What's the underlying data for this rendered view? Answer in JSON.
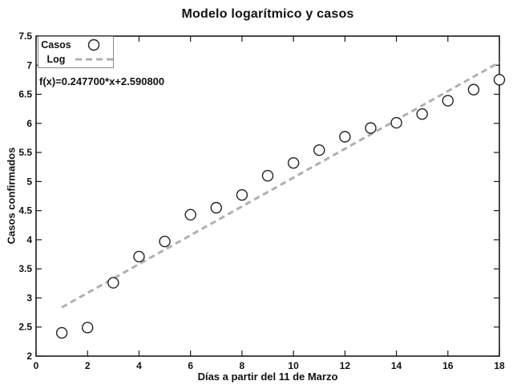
{
  "title": "Modelo logarítmico y casos",
  "colors": {
    "axis": "#1a1a1a",
    "text": "#111111",
    "marker_stroke": "#222222",
    "marker_fill": "#ffffff",
    "fit_line": "#b0b0b0",
    "legend_border": "#8a8a8a",
    "background": "#ffffff"
  },
  "chart_data": {
    "type": "scatter",
    "title": "Modelo logarítmico y casos",
    "xlabel": "Días a partir del 11 de Marzo",
    "ylabel": "Casos confirmados",
    "xlim": [
      0,
      18
    ],
    "ylim": [
      2,
      7.5
    ],
    "x_ticks": [
      0,
      2,
      4,
      6,
      8,
      10,
      12,
      14,
      16,
      18
    ],
    "y_ticks": [
      2,
      2.5,
      3,
      3.5,
      4,
      4.5,
      5,
      5.5,
      6,
      6.5,
      7,
      7.5
    ],
    "grid": false,
    "legend_position": "top-left-inside",
    "annotation": "f(x)=0.247700*x+2.590800",
    "series": [
      {
        "name": "Casos",
        "type": "scatter",
        "marker": "open-circle",
        "color": "#222222",
        "x": [
          1,
          2,
          3,
          4,
          5,
          6,
          7,
          8,
          9,
          10,
          11,
          12,
          13,
          14,
          15,
          16,
          17,
          18
        ],
        "y": [
          2.4,
          2.49,
          3.26,
          3.71,
          3.97,
          4.43,
          4.55,
          4.77,
          5.1,
          5.32,
          5.54,
          5.77,
          5.92,
          6.01,
          6.16,
          6.39,
          6.58,
          6.75
        ]
      },
      {
        "name": "Log",
        "type": "line",
        "style": "dashed",
        "color": "#b0b0b0",
        "fit": {
          "slope": 0.2477,
          "intercept": 2.5908
        },
        "x_range": [
          1,
          18
        ]
      }
    ]
  }
}
